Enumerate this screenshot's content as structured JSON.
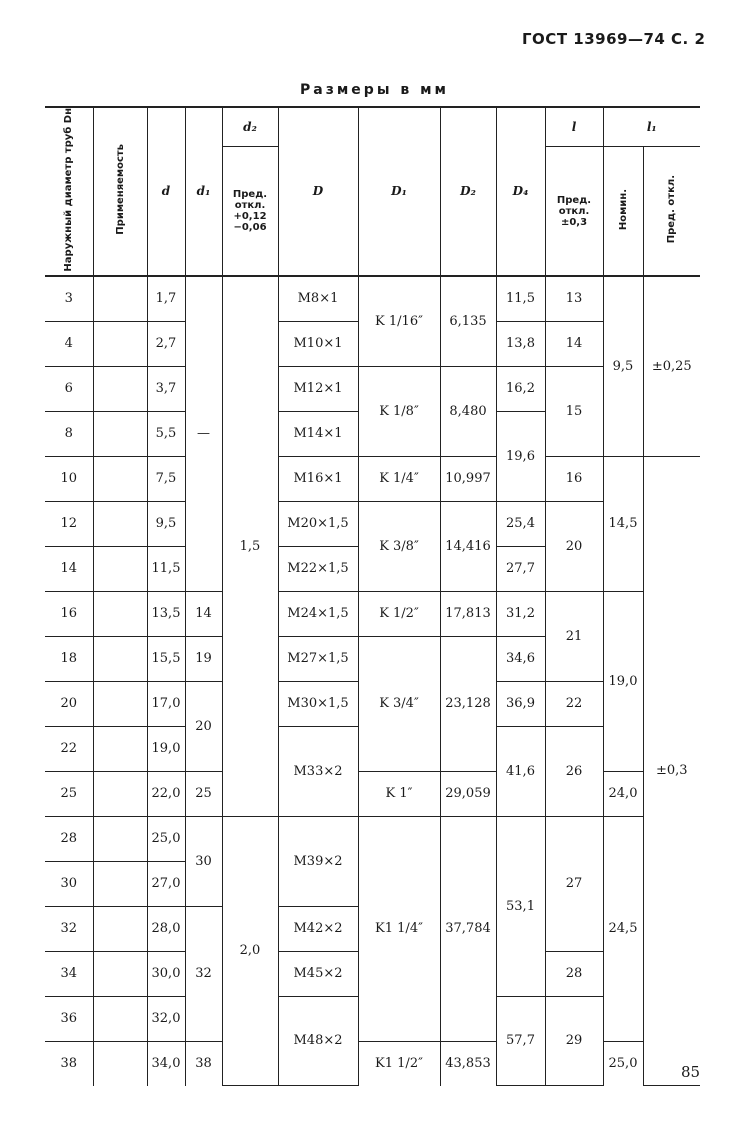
{
  "header": {
    "gost": "ГОСТ 13969—74 С. 2",
    "units": "Размеры в мм"
  },
  "columns": {
    "dn": "Наружный диаметр труб Dн",
    "usage": "Применяемость",
    "d": "d",
    "d1": "d₁",
    "d2": "d₂",
    "d2_tol": "Пред. откл. +0,12 −0,06",
    "D": "D",
    "D1": "D₁",
    "D2": "D₂",
    "D4": "D₄",
    "l": "l",
    "l_tol": "Пред. откл. ±0,3",
    "l1": "l₁",
    "l1_nom": "Номин.",
    "l1_tol": "Пред. откл."
  },
  "rows": {
    "dn": [
      "3",
      "4",
      "6",
      "8",
      "10",
      "12",
      "14",
      "16",
      "18",
      "20",
      "22",
      "25",
      "28",
      "30",
      "32",
      "34",
      "36",
      "38"
    ],
    "d": [
      "1,7",
      "2,7",
      "3,7",
      "5,5",
      "7,5",
      "9,5",
      "11,5",
      "13,5",
      "15,5",
      "17,0",
      "19,0",
      "22,0",
      "25,0",
      "27,0",
      "28,0",
      "30,0",
      "32,0",
      "34,0"
    ]
  },
  "spans": {
    "d1": [
      {
        "v": "—",
        "n": 7
      },
      {
        "v": "14",
        "n": 1
      },
      {
        "v": "19",
        "n": 1
      },
      {
        "v": "20",
        "n": 2
      },
      {
        "v": "25",
        "n": 1
      },
      {
        "v": "30",
        "n": 2
      },
      {
        "v": "32",
        "n": 3
      },
      {
        "v": "38",
        "n": 1
      }
    ],
    "d2": [
      {
        "v": "1,5",
        "n": 12
      },
      {
        "v": "2,0",
        "n": 6
      }
    ],
    "D": [
      {
        "v": "M8×1",
        "n": 1
      },
      {
        "v": "M10×1",
        "n": 1
      },
      {
        "v": "M12×1",
        "n": 1
      },
      {
        "v": "M14×1",
        "n": 1
      },
      {
        "v": "M16×1",
        "n": 1
      },
      {
        "v": "M20×1,5",
        "n": 1
      },
      {
        "v": "M22×1,5",
        "n": 1
      },
      {
        "v": "M24×1,5",
        "n": 1
      },
      {
        "v": "M27×1,5",
        "n": 1
      },
      {
        "v": "M30×1,5",
        "n": 1
      },
      {
        "v": "M33×2",
        "n": 2
      },
      {
        "v": "M39×2",
        "n": 2
      },
      {
        "v": "M42×2",
        "n": 1
      },
      {
        "v": "M45×2",
        "n": 1
      },
      {
        "v": "M48×2",
        "n": 2
      }
    ],
    "D1": [
      {
        "v": "K 1/16″",
        "n": 2
      },
      {
        "v": "K 1/8″",
        "n": 2
      },
      {
        "v": "K 1/4″",
        "n": 1
      },
      {
        "v": "K 3/8″",
        "n": 2
      },
      {
        "v": "K 1/2″",
        "n": 1
      },
      {
        "v": "K 3/4″",
        "n": 3
      },
      {
        "v": "K 1″",
        "n": 1
      },
      {
        "v": "K1 1/4″",
        "n": 5
      },
      {
        "v": "K1 1/2″",
        "n": 1
      }
    ],
    "D2": [
      {
        "v": "6,135",
        "n": 2
      },
      {
        "v": "8,480",
        "n": 2
      },
      {
        "v": "10,997",
        "n": 1
      },
      {
        "v": "14,416",
        "n": 2
      },
      {
        "v": "17,813",
        "n": 1
      },
      {
        "v": "23,128",
        "n": 3
      },
      {
        "v": "29,059",
        "n": 1
      },
      {
        "v": "37,784",
        "n": 5
      },
      {
        "v": "43,853",
        "n": 1
      }
    ],
    "D4": [
      {
        "v": "11,5",
        "n": 1
      },
      {
        "v": "13,8",
        "n": 1
      },
      {
        "v": "16,2",
        "n": 1
      },
      {
        "v": "19,6",
        "n": 2
      },
      {
        "v": "25,4",
        "n": 1
      },
      {
        "v": "27,7",
        "n": 1
      },
      {
        "v": "31,2",
        "n": 1
      },
      {
        "v": "34,6",
        "n": 1
      },
      {
        "v": "36,9",
        "n": 1
      },
      {
        "v": "41,6",
        "n": 2
      },
      {
        "v": "53,1",
        "n": 4
      },
      {
        "v": "57,7",
        "n": 2
      }
    ],
    "l": [
      {
        "v": "13",
        "n": 1
      },
      {
        "v": "14",
        "n": 1
      },
      {
        "v": "15",
        "n": 2
      },
      {
        "v": "16",
        "n": 1
      },
      {
        "v": "20",
        "n": 2
      },
      {
        "v": "21",
        "n": 2
      },
      {
        "v": "22",
        "n": 1
      },
      {
        "v": "26",
        "n": 2
      },
      {
        "v": "27",
        "n": 3
      },
      {
        "v": "28",
        "n": 1
      },
      {
        "v": "29",
        "n": 2
      }
    ],
    "l1_nom": [
      {
        "v": "9,5",
        "n": 4
      },
      {
        "v": "14,5",
        "n": 3
      },
      {
        "v": "19,0",
        "n": 4
      },
      {
        "v": "24,0",
        "n": 1
      },
      {
        "v": "24,5",
        "n": 5
      },
      {
        "v": "25,0",
        "n": 1
      }
    ],
    "l1_tol": [
      {
        "v": "±0,25",
        "n": 4
      },
      {
        "v": "±0,3",
        "n": 14
      }
    ]
  },
  "page_number": "85"
}
